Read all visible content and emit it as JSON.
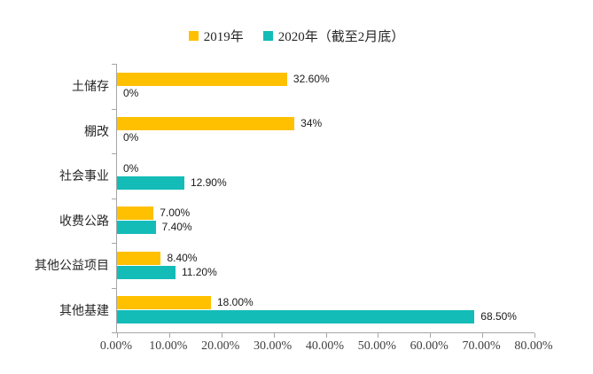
{
  "chart_data": {
    "type": "bar",
    "orientation": "horizontal",
    "title": "",
    "legend_position": "top",
    "grid": false,
    "categories": [
      "土储存",
      "棚改",
      "社会事业",
      "收费公路",
      "其他公益项目",
      "其他基建"
    ],
    "series": [
      {
        "name": "2019年",
        "color": "#FFC000",
        "values": [
          32.6,
          34,
          0,
          7.0,
          8.4,
          18.0
        ],
        "labels": [
          "32.60%",
          "34%",
          "0%",
          "7.00%",
          "8.40%",
          "18.00%"
        ]
      },
      {
        "name": "2020年（截至2月底）",
        "color": "#14BCB8",
        "values": [
          0,
          0,
          12.9,
          7.4,
          11.2,
          68.5
        ],
        "labels": [
          "0%",
          "0%",
          "12.90%",
          "7.40%",
          "11.20%",
          "68.50%"
        ]
      }
    ],
    "x_axis": {
      "min": 0,
      "max": 80,
      "tick_step": 10,
      "tick_labels": [
        "0.00%",
        "10.00%",
        "20.00%",
        "30.00%",
        "40.00%",
        "50.00%",
        "60.00%",
        "70.00%",
        "80.00%"
      ]
    },
    "axis_color": "#a6a6a6"
  }
}
